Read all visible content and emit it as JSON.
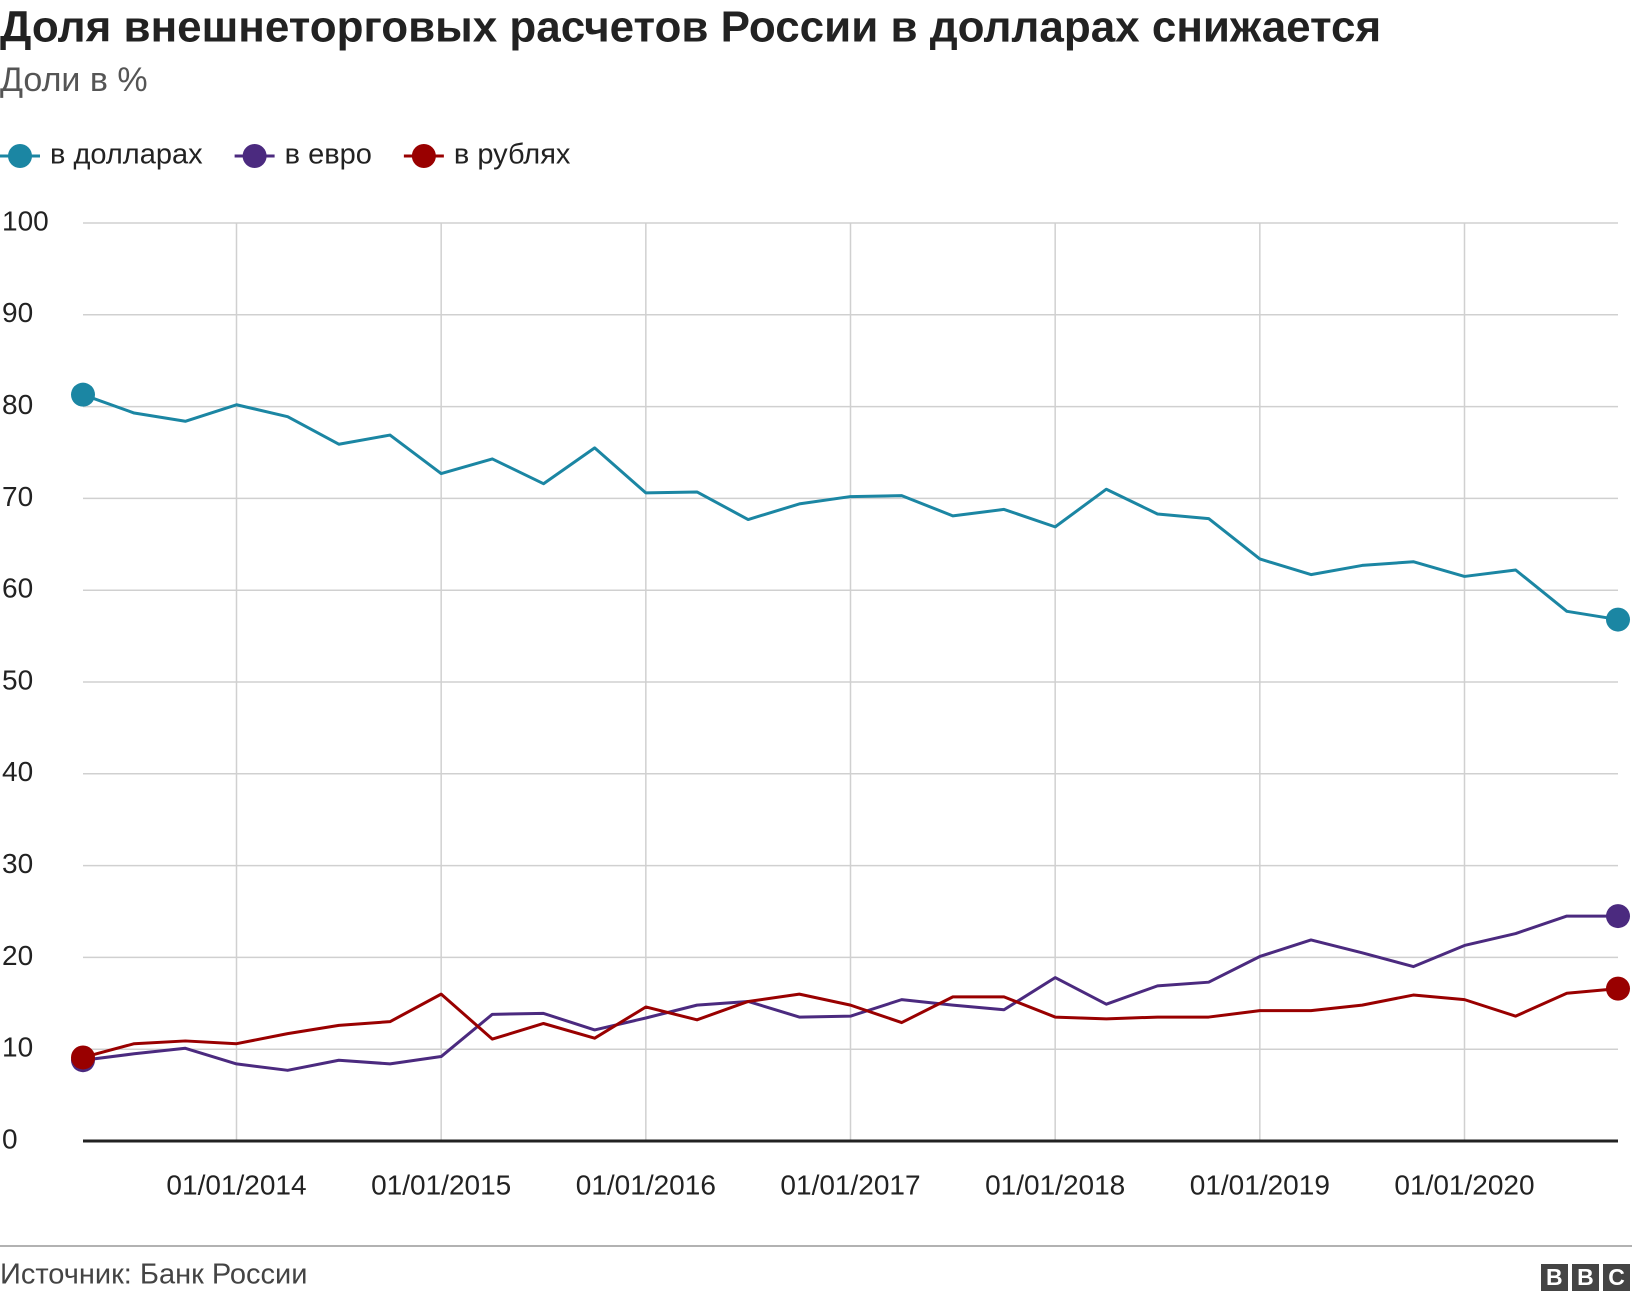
{
  "chart_data": {
    "type": "line",
    "title": "Доля внешнеторговых расчетов России в долларах снижается",
    "subtitle": "Доли в %",
    "source": "Источник: Банк России",
    "brand": "BBC",
    "x": [
      "01/04/2013",
      "01/07/2013",
      "01/10/2013",
      "01/01/2014",
      "01/04/2014",
      "01/07/2014",
      "01/10/2014",
      "01/01/2015",
      "01/04/2015",
      "01/07/2015",
      "01/10/2015",
      "01/01/2016",
      "01/04/2016",
      "01/07/2016",
      "01/10/2016",
      "01/01/2017",
      "01/04/2017",
      "01/07/2017",
      "01/10/2017",
      "01/01/2018",
      "01/04/2018",
      "01/07/2018",
      "01/10/2018",
      "01/01/2019",
      "01/04/2019",
      "01/07/2019",
      "01/10/2019",
      "01/01/2020",
      "01/04/2020",
      "01/07/2020",
      "01/10/2020"
    ],
    "xticks": [
      "01/01/2014",
      "01/01/2015",
      "01/01/2016",
      "01/01/2017",
      "01/01/2018",
      "01/01/2019",
      "01/01/2020"
    ],
    "ylim": [
      0,
      100
    ],
    "yticks": [
      0,
      10,
      20,
      30,
      40,
      50,
      60,
      70,
      80,
      90,
      100
    ],
    "grid": true,
    "legend": "top-left",
    "series": [
      {
        "name": "в долларах",
        "color": "#1b86a3",
        "values": [
          81.3,
          79.3,
          78.4,
          80.2,
          78.9,
          75.9,
          76.9,
          72.7,
          74.3,
          71.6,
          75.5,
          70.6,
          70.7,
          67.7,
          69.4,
          70.2,
          70.3,
          68.1,
          68.8,
          66.9,
          71.0,
          68.3,
          67.8,
          63.4,
          61.7,
          62.7,
          63.1,
          61.5,
          62.2,
          57.7,
          56.8
        ]
      },
      {
        "name": "в евро",
        "color": "#4b2a7f",
        "values": [
          8.8,
          9.5,
          10.1,
          8.4,
          7.7,
          8.8,
          8.4,
          9.2,
          13.8,
          13.9,
          12.1,
          13.4,
          14.8,
          15.2,
          13.5,
          13.6,
          15.4,
          14.8,
          14.3,
          17.8,
          14.9,
          16.9,
          17.3,
          20.1,
          21.9,
          20.5,
          19.0,
          21.3,
          22.6,
          24.5,
          24.5
        ]
      },
      {
        "name": "в рублях",
        "color": "#990000",
        "values": [
          9.1,
          10.6,
          10.9,
          10.6,
          11.7,
          12.6,
          13.0,
          16.0,
          11.1,
          12.8,
          11.2,
          14.6,
          13.2,
          15.2,
          16.0,
          14.8,
          12.9,
          15.7,
          15.7,
          13.5,
          13.3,
          13.5,
          13.5,
          14.2,
          14.2,
          14.8,
          15.9,
          15.4,
          13.6,
          16.1,
          16.6
        ]
      }
    ]
  }
}
